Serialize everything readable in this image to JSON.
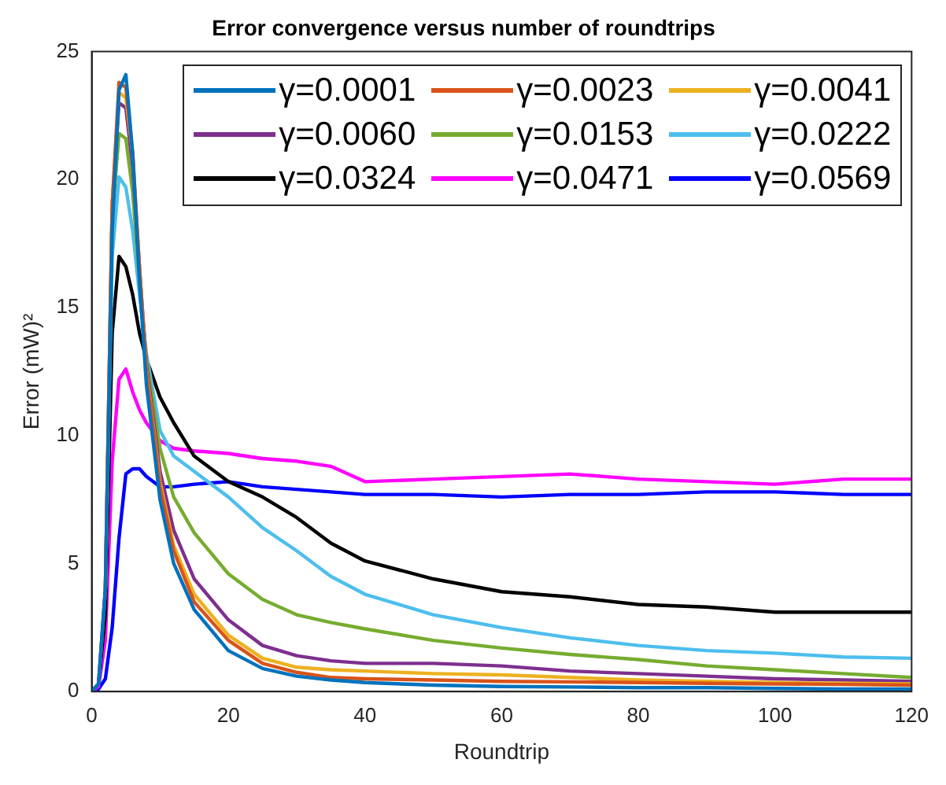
{
  "chart_data": {
    "type": "line",
    "title": "Error convergence versus number of roundtrips",
    "xlabel": "Roundtrip",
    "ylabel": "Error (mW)²",
    "x": [
      0,
      1,
      2,
      3,
      4,
      5,
      6,
      7,
      8,
      10,
      12,
      15,
      20,
      25,
      30,
      35,
      40,
      50,
      60,
      70,
      80,
      90,
      100,
      110,
      120
    ],
    "xlim": [
      0,
      120
    ],
    "xticks": [
      0,
      20,
      40,
      60,
      80,
      100,
      120
    ],
    "ylim": [
      0,
      25
    ],
    "yticks": [
      0,
      5,
      10,
      15,
      20,
      25
    ],
    "grid": false,
    "legend": "top right",
    "marker": "none",
    "line_style": "solid",
    "series": [
      {
        "name": "γ=0.0001",
        "color": "#0072bd",
        "values": [
          0,
          0.3,
          4,
          18,
          23.5,
          24.1,
          21,
          16,
          12,
          7.5,
          5,
          3.2,
          1.6,
          0.9,
          0.6,
          0.45,
          0.35,
          0.25,
          0.2,
          0.18,
          0.15,
          0.15,
          0.12,
          0.1,
          0.1
        ]
      },
      {
        "name": "γ=0.0023",
        "color": "#d95319",
        "values": [
          null,
          null,
          4,
          19,
          23.8,
          23.6,
          21,
          16.5,
          12.5,
          8,
          5.5,
          3.5,
          2,
          1.1,
          0.75,
          0.55,
          0.5,
          0.45,
          0.4,
          0.38,
          0.35,
          0.32,
          0.3,
          0.28,
          0.25
        ]
      },
      {
        "name": "γ=0.0041",
        "color": "#edb120",
        "values": [
          null,
          null,
          4,
          19,
          23.4,
          23.2,
          21,
          16.5,
          12.6,
          8.2,
          5.7,
          3.8,
          2.2,
          1.3,
          0.95,
          0.85,
          0.8,
          0.7,
          0.65,
          0.55,
          0.45,
          0.4,
          0.35,
          0.32,
          0.3
        ]
      },
      {
        "name": "γ=0.0060",
        "color": "#7e2f8e",
        "values": [
          0,
          0.3,
          4,
          19,
          23,
          22.8,
          20.5,
          16.5,
          12.8,
          8.6,
          6.3,
          4.4,
          2.8,
          1.8,
          1.4,
          1.2,
          1.1,
          1.1,
          1,
          0.8,
          0.7,
          0.6,
          0.5,
          0.45,
          0.4
        ]
      },
      {
        "name": "γ=0.0153",
        "color": "#77ac30",
        "values": [
          null,
          null,
          4,
          18.5,
          21.8,
          21.6,
          19.5,
          16,
          13,
          9.5,
          7.6,
          6.2,
          4.6,
          3.6,
          3,
          2.7,
          2.45,
          2,
          1.7,
          1.45,
          1.25,
          1,
          0.85,
          0.7,
          0.55
        ]
      },
      {
        "name": "γ=0.0222",
        "color": "#4dbeee",
        "values": [
          0,
          0.3,
          4,
          17,
          20.1,
          19.7,
          18,
          15.5,
          13.2,
          10.2,
          9.2,
          8.6,
          7.6,
          6.4,
          5.5,
          4.5,
          3.8,
          3,
          2.5,
          2.1,
          1.8,
          1.6,
          1.5,
          1.35,
          1.3
        ]
      },
      {
        "name": "γ=0.0324",
        "color": "#000000",
        "values": [
          0,
          0.3,
          3,
          14,
          17,
          16.6,
          15.5,
          14,
          13,
          11.5,
          10.5,
          9.2,
          8.2,
          7.6,
          6.8,
          5.8,
          5.1,
          4.4,
          3.9,
          3.7,
          3.4,
          3.3,
          3.1,
          3.1,
          3.1
        ]
      },
      {
        "name": "γ=0.0471",
        "color": "#ff00ff",
        "values": [
          0,
          0.2,
          2,
          9,
          12.2,
          12.6,
          11.7,
          11,
          10.5,
          9.8,
          9.5,
          9.4,
          9.3,
          9.1,
          9,
          8.8,
          8.2,
          8.3,
          8.4,
          8.5,
          8.3,
          8.2,
          8.1,
          8.3,
          8.3
        ]
      },
      {
        "name": "γ=0.0569",
        "color": "#0000ff",
        "values": [
          0,
          0.1,
          0.5,
          2.5,
          6,
          8.5,
          8.7,
          8.7,
          8.4,
          8,
          8,
          8.1,
          8.2,
          8,
          7.9,
          7.8,
          7.7,
          7.7,
          7.6,
          7.7,
          7.7,
          7.8,
          7.8,
          7.7,
          7.7
        ]
      }
    ]
  }
}
